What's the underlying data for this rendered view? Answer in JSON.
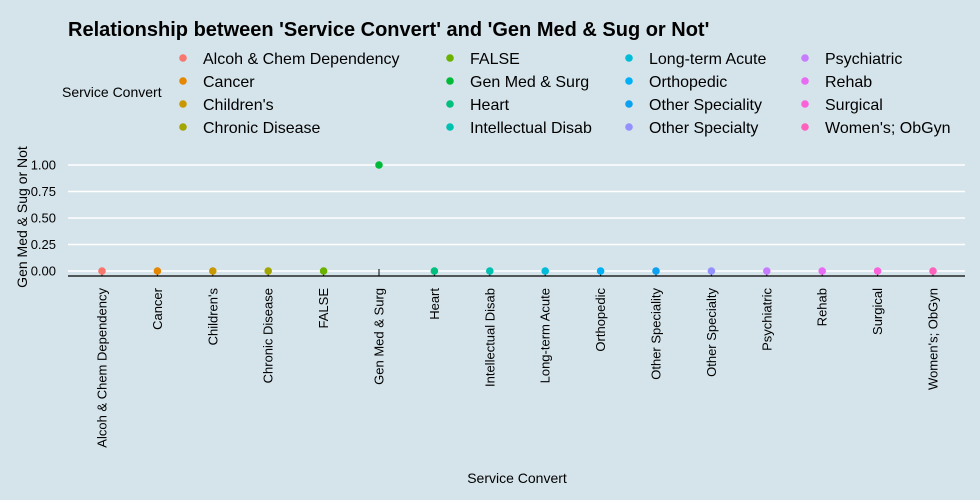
{
  "chart_data": {
    "type": "scatter",
    "title": "Relationship between 'Service Convert' and 'Gen Med & Sug or Not'",
    "xlabel": "Service Convert",
    "ylabel": "Gen Med & Sug or Not",
    "legend_title": "Service Convert",
    "legend_position": "top",
    "grid": true,
    "ylim": [
      0,
      1
    ],
    "yticks": [
      "0.00",
      "0.25",
      "0.50",
      "0.75",
      "1.00"
    ],
    "categories": [
      "Alcoh & Chem Dependency",
      "Cancer",
      "Children's",
      "Chronic Disease",
      "FALSE",
      "Gen Med & Surg",
      "Heart",
      "Intellectual Disab",
      "Long-term Acute",
      "Orthopedic",
      "Other Speciality",
      "Other Specialty",
      "Psychiatric",
      "Rehab",
      "Surgical",
      "Women's; ObGyn"
    ],
    "values": [
      0,
      0,
      0,
      0,
      0,
      1,
      0,
      0,
      0,
      0,
      0,
      0,
      0,
      0,
      0,
      0
    ],
    "colors": [
      "#f8766d",
      "#e58700",
      "#c99800",
      "#a3a500",
      "#6bb100",
      "#00ba38",
      "#00bf7d",
      "#00c0af",
      "#00bcd8",
      "#00b0f6",
      "#0ba0f0",
      "#9590ff",
      "#c77cff",
      "#e76bf3",
      "#fa62db",
      "#ff62bc"
    ]
  }
}
